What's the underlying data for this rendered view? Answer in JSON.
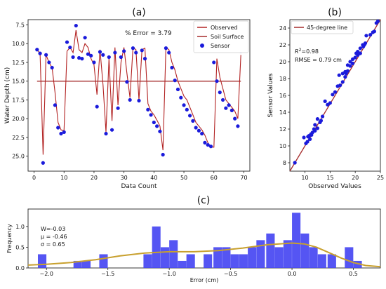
{
  "chart_data": [
    {
      "type": "line",
      "title": "(a)",
      "xlabel": "Data Count",
      "ylabel": "Water Depth (cm)",
      "xlim": [
        -2,
        72
      ],
      "ylim": [
        27,
        6.8
      ],
      "y_inverted": true,
      "xticks": [
        0,
        10,
        20,
        30,
        40,
        50,
        60,
        70
      ],
      "yticks": [
        7.5,
        10.0,
        12.5,
        15.0,
        17.5,
        20.0,
        22.5,
        25.0
      ],
      "annotation": "% Error = 3.79",
      "legend": [
        "Observed",
        "Soil Surface",
        "Sensor"
      ],
      "legend_position": "top-right",
      "colors": {
        "observed": "#b22222",
        "soil_surface": "#a52a2a",
        "sensor": "#1a1adb"
      },
      "soil_surface": 15.0,
      "soil_surface_x": [
        1,
        69
      ],
      "series": [
        {
          "name": "Observed",
          "x": [
            1,
            2,
            3,
            4,
            5,
            6,
            7,
            8,
            9,
            10,
            11,
            12,
            13,
            14,
            15,
            16,
            17,
            18,
            19,
            20,
            21,
            22,
            23,
            24,
            25,
            26,
            27,
            28,
            29,
            30,
            31,
            32,
            33,
            34,
            35,
            36,
            37,
            38,
            39,
            40,
            41,
            42,
            43,
            44,
            45,
            46,
            47,
            48,
            49,
            50,
            51,
            52,
            53,
            54,
            55,
            56,
            57,
            58,
            59,
            60,
            61,
            62,
            63,
            64,
            65,
            66,
            67,
            68,
            69
          ],
          "y": [
            10.8,
            11.3,
            24.8,
            11.5,
            12.5,
            13.2,
            16.5,
            20.5,
            21.5,
            21.6,
            11.0,
            10.5,
            11.2,
            8.2,
            10.8,
            11.2,
            10.0,
            10.5,
            12.0,
            12.8,
            16.8,
            10.8,
            15.5,
            21.8,
            12.0,
            20.3,
            10.5,
            18.2,
            12.5,
            10.5,
            14.0,
            17.2,
            10.5,
            10.8,
            17.5,
            10.8,
            10.6,
            18.0,
            19.0,
            19.5,
            20.2,
            21.0,
            24.2,
            10.5,
            10.8,
            12.5,
            13.5,
            15.0,
            16.0,
            17.0,
            17.5,
            18.5,
            19.5,
            20.5,
            21.0,
            21.5,
            22.2,
            23.2,
            23.8,
            23.8,
            12.0,
            14.5,
            16.0,
            17.5,
            18.0,
            18.5,
            19.0,
            20.0,
            11.5
          ]
        },
        {
          "name": "Sensor",
          "x": [
            1,
            2,
            3,
            4,
            5,
            6,
            7,
            8,
            9,
            10,
            11,
            12,
            13,
            14,
            15,
            16,
            17,
            18,
            19,
            20,
            21,
            22,
            23,
            24,
            25,
            26,
            27,
            28,
            29,
            30,
            31,
            32,
            33,
            34,
            35,
            36,
            37,
            38,
            39,
            40,
            41,
            42,
            43,
            44,
            45,
            46,
            47,
            48,
            49,
            50,
            51,
            52,
            53,
            54,
            55,
            56,
            57,
            58,
            59,
            60,
            61,
            62,
            63,
            64,
            65,
            66,
            67,
            68,
            69
          ],
          "y": [
            10.8,
            11.3,
            25.9,
            11.5,
            12.5,
            13.2,
            18.2,
            21.2,
            22.0,
            21.8,
            9.8,
            10.5,
            11.8,
            7.6,
            11.9,
            12.0,
            9.2,
            11.4,
            11.6,
            12.5,
            18.4,
            11.1,
            11.5,
            22.0,
            11.8,
            21.5,
            11.2,
            18.6,
            11.8,
            11.0,
            15.1,
            17.5,
            10.6,
            11.2,
            17.6,
            10.9,
            12.0,
            18.8,
            19.5,
            20.5,
            21.0,
            21.7,
            24.8,
            10.6,
            11.2,
            13.2,
            14.9,
            16.1,
            17.2,
            18.2,
            18.8,
            19.6,
            20.3,
            21.2,
            21.6,
            22.0,
            23.2,
            23.5,
            23.7,
            12.5,
            15.0,
            16.5,
            17.5,
            18.6,
            18.2,
            18.9,
            20.0,
            21.0,
            11.0
          ]
        }
      ]
    },
    {
      "type": "scatter",
      "title": "(b)",
      "xlabel": "Observed Values",
      "ylabel": "Sensor Values",
      "xlim": [
        7,
        25
      ],
      "ylim": [
        7,
        25
      ],
      "xticks": [
        10,
        15,
        20,
        25
      ],
      "yticks": [
        8,
        10,
        12,
        14,
        16,
        18,
        20,
        22,
        24
      ],
      "legend": [
        "45-degree line"
      ],
      "legend_position": "top-left",
      "r2_label": "R",
      "r2_sup": "2",
      "r2_value": "=0.98",
      "rmse_text": "RMSE = 0.79 cm",
      "colors": {
        "line": "#a52a2a",
        "points": "#1a1adb"
      },
      "series": [
        {
          "name": "45-degree line",
          "x": [
            7,
            25
          ],
          "y": [
            7,
            25
          ]
        },
        {
          "name": "",
          "x": [
            8.0,
            9.8,
            10.2,
            10.5,
            10.6,
            10.8,
            11.0,
            11.2,
            11.3,
            11.5,
            11.8,
            12.0,
            12.0,
            12.5,
            12.5,
            13.0,
            13.2,
            13.5,
            14.0,
            14.5,
            15.0,
            15.5,
            16.0,
            16.5,
            16.8,
            17.0,
            17.5,
            17.5,
            18.0,
            18.0,
            18.2,
            18.5,
            18.5,
            19.0,
            19.0,
            19.5,
            19.5,
            20.0,
            20.2,
            20.5,
            20.5,
            21.0,
            21.0,
            21.5,
            21.6,
            21.8,
            22.0,
            22.2,
            23.0,
            23.5,
            23.8,
            24.2,
            24.5
          ],
          "y": [
            8.0,
            11.0,
            10.3,
            10.5,
            11.1,
            11.2,
            10.8,
            11.4,
            11.3,
            11.6,
            12.0,
            11.8,
            12.5,
            12.1,
            13.2,
            12.8,
            13.0,
            13.5,
            15.3,
            14.9,
            15.1,
            16.1,
            16.4,
            17.1,
            18.4,
            17.2,
            17.6,
            18.6,
            18.2,
            18.8,
            18.6,
            18.9,
            19.6,
            19.5,
            20.0,
            20.3,
            19.8,
            20.5,
            21.0,
            21.2,
            20.8,
            21.6,
            21.0,
            22.0,
            21.8,
            22.0,
            22.2,
            23.1,
            23.2,
            23.5,
            23.6,
            24.6,
            24.8
          ]
        }
      ]
    },
    {
      "type": "bar",
      "title": "(c)",
      "xlabel": "Error (cm)",
      "ylabel": "Frequency",
      "xlim": [
        -2.15,
        0.72
      ],
      "ylim": [
        0,
        1.42
      ],
      "xticks": [
        -2.0,
        -1.5,
        -1.0,
        -0.5,
        0.0,
        0.5
      ],
      "xtick_labels": [
        "−2.0",
        "−1.5",
        "−1.0",
        "−0.5",
        "0.0",
        "0.5"
      ],
      "yticks": [
        0.0,
        0.5,
        1.0
      ],
      "ytick_labels": [
        "0.0",
        "0.5",
        "1.0"
      ],
      "stats": [
        "W=-0.03",
        "μ = -0.46",
        "σ = 0.65"
      ],
      "colors": {
        "bars": "#4646f2",
        "curve": "#c8a02e"
      },
      "bin_width": 0.0714,
      "bins": [
        {
          "x0": -2.07,
          "v": 0.33
        },
        {
          "x0": -1.78,
          "v": 0.17
        },
        {
          "x0": -1.71,
          "v": 0.17
        },
        {
          "x0": -1.57,
          "v": 0.33
        },
        {
          "x0": -1.21,
          "v": 0.33
        },
        {
          "x0": -1.14,
          "v": 1.0
        },
        {
          "x0": -1.07,
          "v": 0.5
        },
        {
          "x0": -1.0,
          "v": 0.67
        },
        {
          "x0": -0.93,
          "v": 0.17
        },
        {
          "x0": -0.86,
          "v": 0.33
        },
        {
          "x0": -0.72,
          "v": 0.33
        },
        {
          "x0": -0.64,
          "v": 0.5
        },
        {
          "x0": -0.57,
          "v": 0.5
        },
        {
          "x0": -0.5,
          "v": 0.33
        },
        {
          "x0": -0.43,
          "v": 0.33
        },
        {
          "x0": -0.36,
          "v": 0.5
        },
        {
          "x0": -0.29,
          "v": 0.67
        },
        {
          "x0": -0.21,
          "v": 0.83
        },
        {
          "x0": -0.14,
          "v": 0.5
        },
        {
          "x0": -0.07,
          "v": 0.67
        },
        {
          "x0": 0.0,
          "v": 1.33
        },
        {
          "x0": 0.07,
          "v": 0.83
        },
        {
          "x0": 0.14,
          "v": 0.5
        },
        {
          "x0": 0.21,
          "v": 0.33
        },
        {
          "x0": 0.29,
          "v": 0.33
        },
        {
          "x0": 0.43,
          "v": 0.5
        },
        {
          "x0": 0.5,
          "v": 0.17
        }
      ],
      "curve": {
        "x": [
          -2.15,
          -2.0,
          -1.8,
          -1.6,
          -1.4,
          -1.2,
          -1.0,
          -0.8,
          -0.6,
          -0.4,
          -0.2,
          0.0,
          0.1,
          0.2,
          0.3,
          0.4,
          0.5,
          0.6,
          0.72
        ],
        "y": [
          0.07,
          0.09,
          0.13,
          0.2,
          0.29,
          0.36,
          0.39,
          0.39,
          0.42,
          0.48,
          0.56,
          0.6,
          0.58,
          0.5,
          0.37,
          0.24,
          0.13,
          0.06,
          0.03
        ]
      }
    }
  ]
}
